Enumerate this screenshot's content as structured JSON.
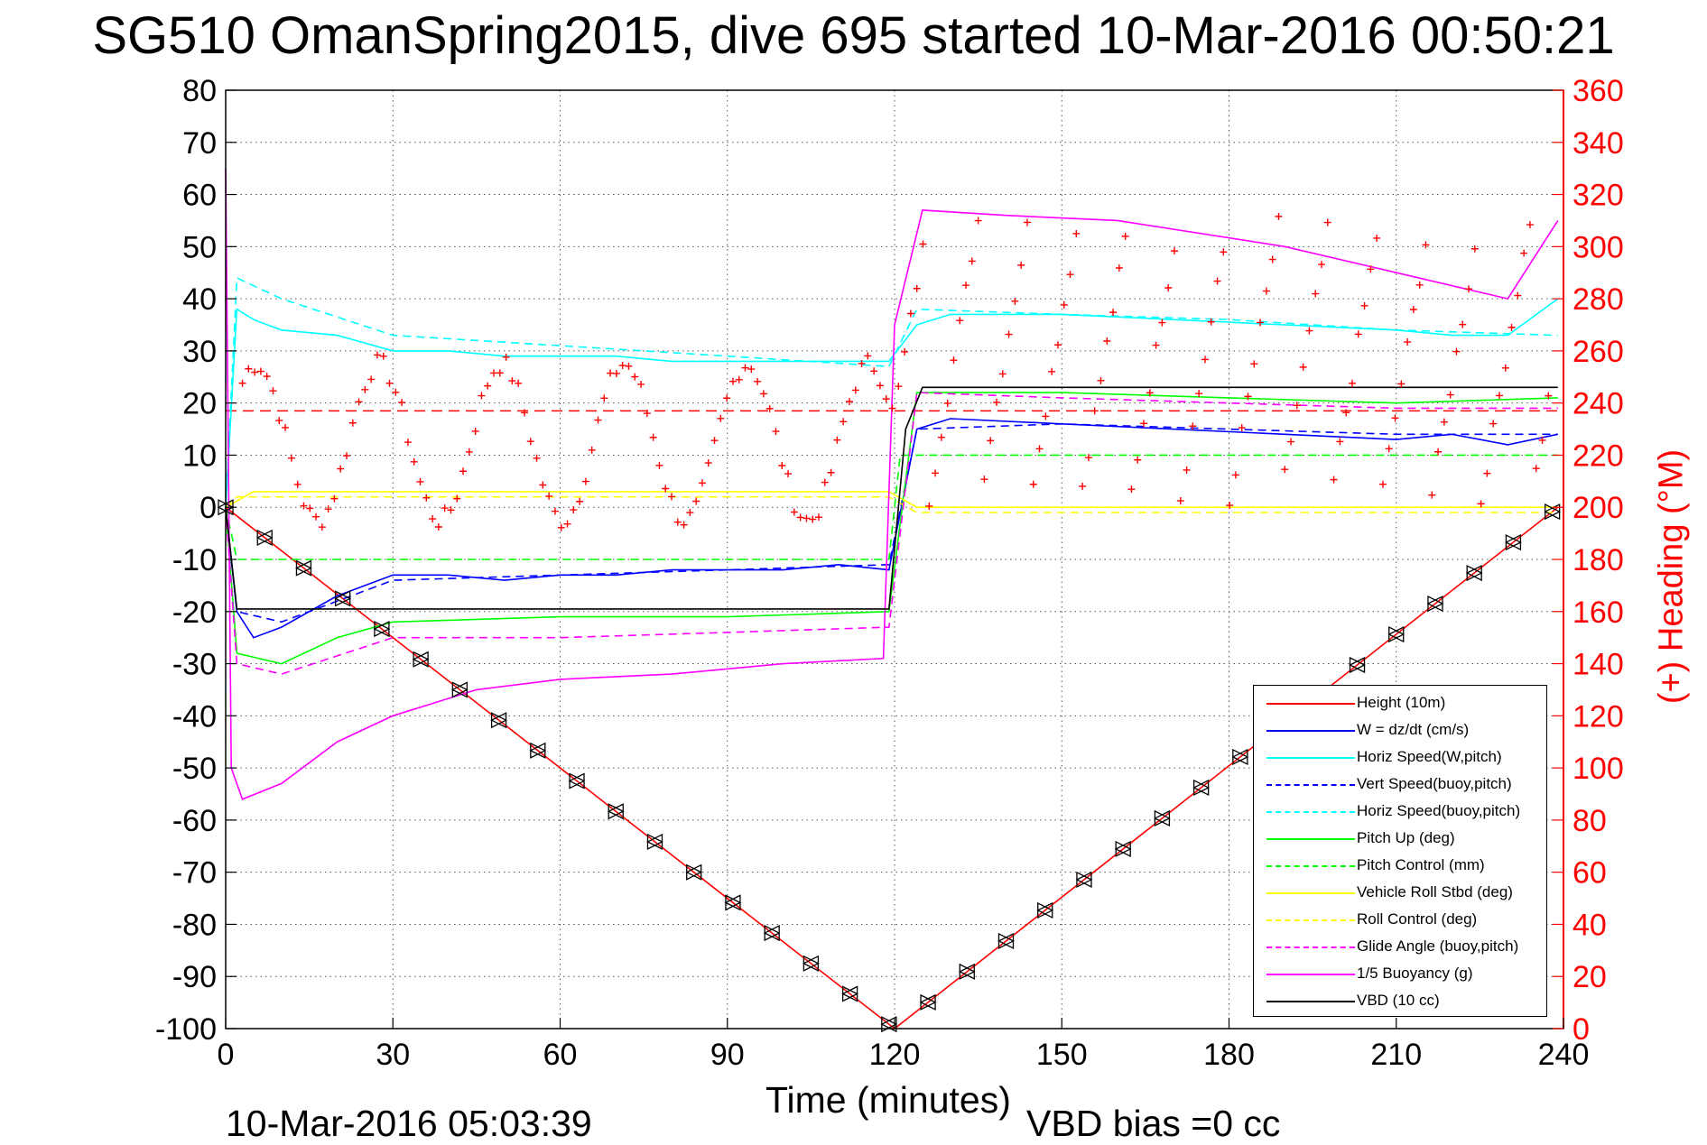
{
  "title": "SG510 OmanSpring2015, dive 695 started 10-Mar-2016 00:50:21",
  "footer": {
    "timestamp": "10-Mar-2016 05:03:39",
    "vbd_bias": "VBD bias =0 cc"
  },
  "chart_data": {
    "type": "line",
    "title": "SG510 OmanSpring2015, dive 695 started 10-Mar-2016 00:50:21",
    "xlabel": "Time (minutes)",
    "ylabel": "",
    "y2label": "(+) Heading (°M)",
    "xlim": [
      0,
      240
    ],
    "ylim": [
      -100,
      80
    ],
    "y2lim": [
      0,
      360
    ],
    "xticks": [
      "0",
      "30",
      "60",
      "90",
      "120",
      "150",
      "180",
      "210",
      "240"
    ],
    "yticks": [
      "80",
      "70",
      "60",
      "50",
      "40",
      "30",
      "20",
      "10",
      "0",
      "-10",
      "-20",
      "-30",
      "-40",
      "-50",
      "-60",
      "-70",
      "-80",
      "-90",
      "-100"
    ],
    "y2ticks": [
      "360",
      "340",
      "320",
      "300",
      "280",
      "260",
      "240",
      "220",
      "200",
      "180",
      "160",
      "140",
      "120",
      "100",
      "80",
      "60",
      "40",
      "20",
      "0"
    ],
    "grid": true,
    "legend_position": "lower-right",
    "colors": {
      "height": "#ff0000",
      "w": "#0000ff",
      "horiz_speed": "#00ffff",
      "pitch": "#00ff00",
      "roll": "#ffff00",
      "glide": "#ff00ff",
      "buoyancy": "#ff00ff",
      "vbd": "#000000",
      "heading": "#ff0000"
    },
    "series": [
      {
        "name": "Height (10m)",
        "style": "solid",
        "color": "#ff0000",
        "x": [
          0,
          120,
          239
        ],
        "y": [
          0,
          -100,
          0
        ]
      },
      {
        "name": "W = dz/dt (cm/s)",
        "style": "solid",
        "color": "#0000ff",
        "x": [
          0,
          2,
          5,
          10,
          20,
          30,
          40,
          50,
          60,
          70,
          80,
          90,
          100,
          110,
          119,
          124,
          130,
          150,
          170,
          190,
          210,
          220,
          230,
          239
        ],
        "y": [
          0,
          -20,
          -25,
          -23,
          -17,
          -13,
          -13,
          -14,
          -13,
          -13,
          -12,
          -12,
          -12,
          -11,
          -12,
          15,
          17,
          16,
          15,
          14,
          13,
          14,
          12,
          14
        ]
      },
      {
        "name": "Horiz Speed(W,pitch)",
        "style": "solid",
        "color": "#00ffff",
        "x": [
          0,
          2,
          5,
          10,
          20,
          30,
          40,
          50,
          60,
          70,
          80,
          90,
          100,
          110,
          119,
          124,
          130,
          150,
          170,
          190,
          210,
          220,
          230,
          239
        ],
        "y": [
          0,
          38,
          36,
          34,
          33,
          30,
          30,
          29,
          29,
          29,
          28,
          28,
          28,
          28,
          28,
          35,
          37,
          37,
          36,
          35,
          34,
          33,
          33,
          40
        ]
      },
      {
        "name": "Vert Speed(buoy,pitch)",
        "style": "dashed",
        "color": "#0000ff",
        "x": [
          0,
          2,
          10,
          30,
          60,
          90,
          119,
          124,
          150,
          180,
          210,
          239
        ],
        "y": [
          0,
          -20,
          -22,
          -14,
          -13,
          -12,
          -11,
          15,
          16,
          15,
          14,
          14
        ]
      },
      {
        "name": "Horiz Speed(buoy,pitch)",
        "style": "dashed",
        "color": "#00ffff",
        "x": [
          0,
          2,
          10,
          30,
          60,
          90,
          119,
          124,
          150,
          180,
          210,
          239
        ],
        "y": [
          0,
          44,
          40,
          33,
          31,
          29,
          27,
          38,
          37,
          36,
          34,
          33
        ]
      },
      {
        "name": "Pitch Up (deg)",
        "style": "solid",
        "color": "#00ff00",
        "x": [
          0,
          2,
          10,
          20,
          30,
          60,
          90,
          119,
          124,
          150,
          180,
          210,
          239
        ],
        "y": [
          0,
          -28,
          -30,
          -25,
          -22,
          -21,
          -21,
          -20,
          22,
          22,
          21,
          20,
          21
        ]
      },
      {
        "name": "Pitch Control (mm)",
        "style": "dashed",
        "color": "#00ff00",
        "x": [
          0,
          2,
          119,
          121,
          239
        ],
        "y": [
          0,
          -10,
          -10,
          10,
          10
        ]
      },
      {
        "name": "Vehicle Roll Stbd (deg)",
        "style": "solid",
        "color": "#ffff00",
        "x": [
          0,
          5,
          10,
          60,
          119,
          124,
          180,
          239
        ],
        "y": [
          0,
          3,
          3,
          3,
          3,
          0,
          0,
          0
        ]
      },
      {
        "name": "Roll Control (deg)",
        "style": "dashed",
        "color": "#ffff00",
        "x": [
          0,
          2,
          119,
          124,
          239
        ],
        "y": [
          0,
          2,
          2,
          -1,
          -1
        ]
      },
      {
        "name": "Glide Angle (buoy,pitch)",
        "style": "dashed",
        "color": "#ff00ff",
        "x": [
          0,
          2,
          10,
          30,
          60,
          90,
          119,
          124,
          150,
          180,
          210,
          239
        ],
        "y": [
          0,
          -30,
          -32,
          -25,
          -25,
          -24,
          -23,
          22,
          21,
          20,
          19,
          19
        ]
      },
      {
        "name": "1/5 Buoyancy (g)",
        "style": "solid",
        "color": "#ff00ff",
        "x": [
          0,
          1,
          3,
          10,
          20,
          30,
          45,
          60,
          80,
          100,
          118,
          120,
          125,
          140,
          160,
          190,
          210,
          230,
          239
        ],
        "y": [
          65,
          -50,
          -56,
          -53,
          -45,
          -40,
          -35,
          -33,
          -32,
          -30,
          -29,
          35,
          57,
          56,
          55,
          50,
          45,
          40,
          55
        ]
      },
      {
        "name": "VBD (10 cc)",
        "style": "solid",
        "color": "#000000",
        "x": [
          0,
          2,
          119,
          122,
          125,
          239
        ],
        "y": [
          0,
          -19.5,
          -19.5,
          15,
          23,
          23
        ]
      }
    ],
    "heading_y2": {
      "marker": "+",
      "color": "#ff0000",
      "approx_range": [
        200,
        320
      ],
      "reference_dashed": 237
    }
  },
  "legend": {
    "items": [
      {
        "label": "Height (10m)",
        "color": "#ff0000",
        "style": "solid"
      },
      {
        "label": "W = dz/dt (cm/s)",
        "color": "#0000ff",
        "style": "solid"
      },
      {
        "label": "Horiz Speed(W,pitch)",
        "color": "#00ffff",
        "style": "solid"
      },
      {
        "label": "Vert Speed(buoy,pitch)",
        "color": "#0000ff",
        "style": "dashed"
      },
      {
        "label": "Horiz Speed(buoy,pitch)",
        "color": "#00ffff",
        "style": "dashed"
      },
      {
        "label": "Pitch Up (deg)",
        "color": "#00ff00",
        "style": "solid"
      },
      {
        "label": "Pitch Control (mm)",
        "color": "#00ff00",
        "style": "dashed"
      },
      {
        "label": "Vehicle Roll Stbd (deg)",
        "color": "#ffff00",
        "style": "solid"
      },
      {
        "label": "Roll Control (deg)",
        "color": "#ffff00",
        "style": "dashed"
      },
      {
        "label": "Glide Angle (buoy,pitch)",
        "color": "#ff00ff",
        "style": "dashed"
      },
      {
        "label": "1/5 Buoyancy (g)",
        "color": "#ff00ff",
        "style": "solid"
      },
      {
        "label": "VBD (10 cc)",
        "color": "#000000",
        "style": "solid"
      }
    ]
  }
}
